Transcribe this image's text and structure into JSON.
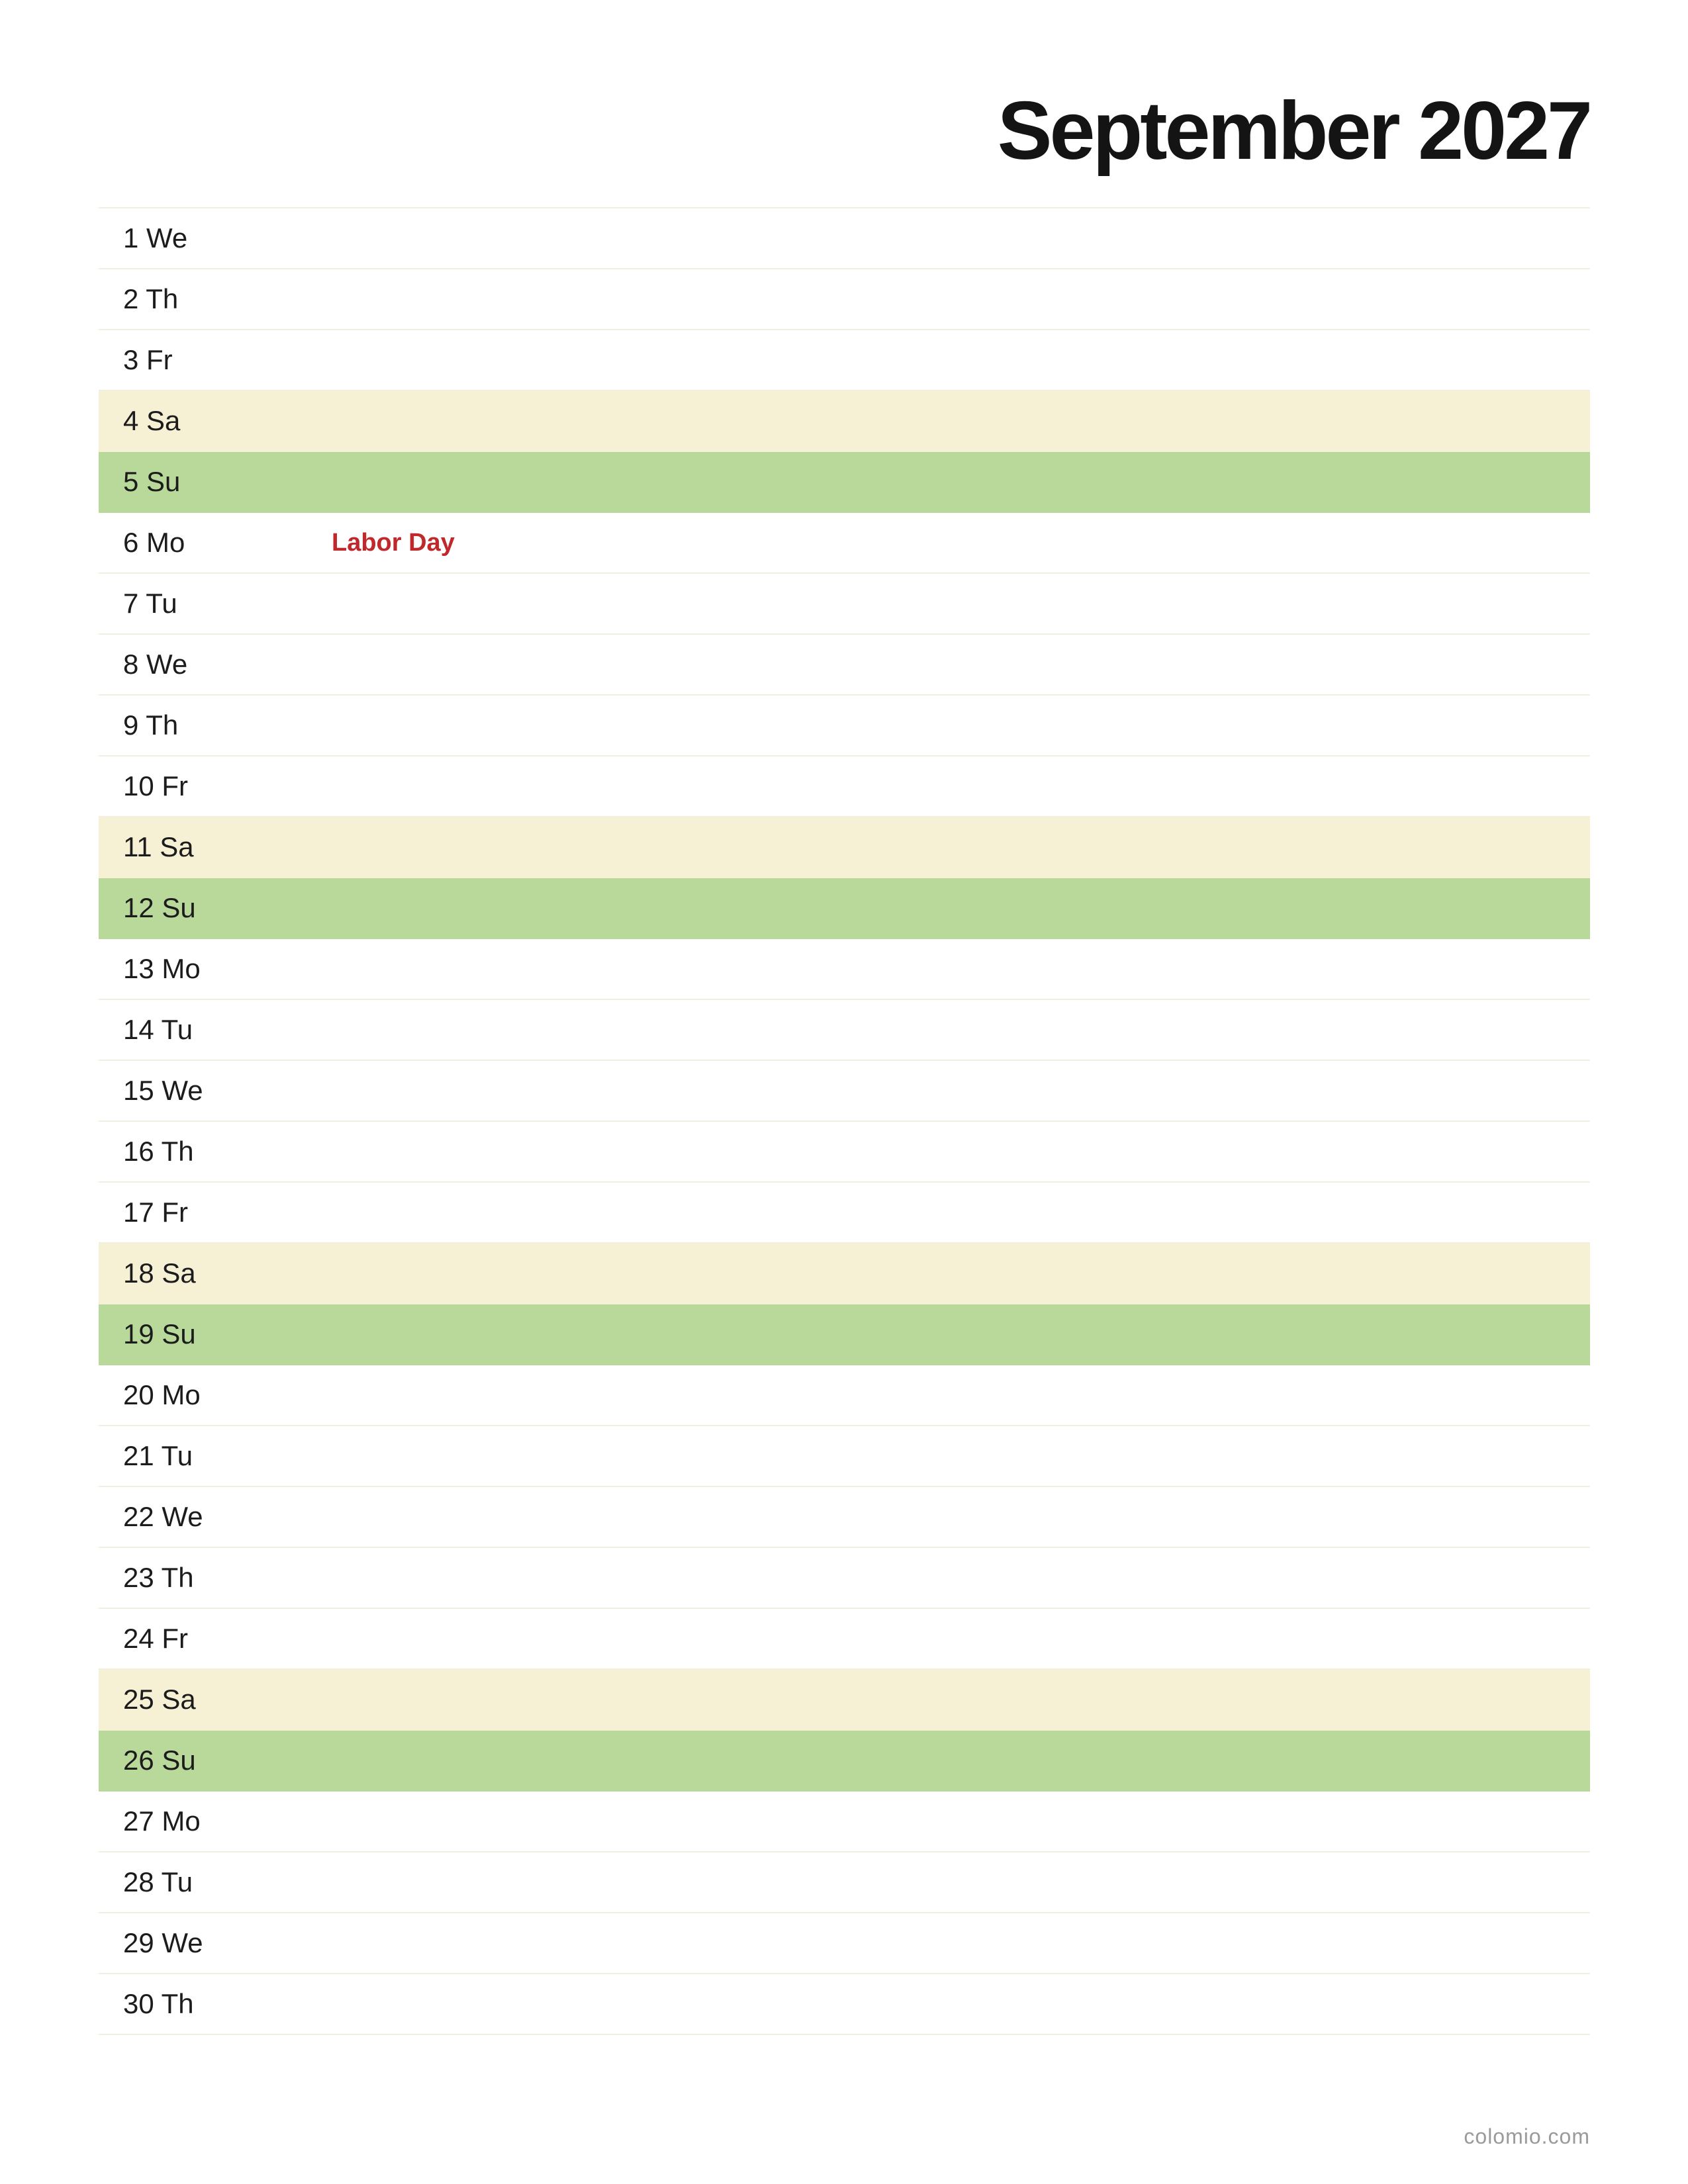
{
  "title": "September 2027",
  "colors": {
    "saturday_row": "#f6f0d5",
    "sunday_row": "#b8d99a",
    "holiday_text": "#c0282b",
    "divider": "#f2efe0"
  },
  "days": [
    {
      "label": "1 We",
      "type": "weekday"
    },
    {
      "label": "2 Th",
      "type": "weekday"
    },
    {
      "label": "3 Fr",
      "type": "weekday"
    },
    {
      "label": "4 Sa",
      "type": "sat"
    },
    {
      "label": "5 Su",
      "type": "sun"
    },
    {
      "label": "6 Mo",
      "type": "weekday",
      "holiday": "Labor Day"
    },
    {
      "label": "7 Tu",
      "type": "weekday"
    },
    {
      "label": "8 We",
      "type": "weekday"
    },
    {
      "label": "9 Th",
      "type": "weekday"
    },
    {
      "label": "10 Fr",
      "type": "weekday"
    },
    {
      "label": "11 Sa",
      "type": "sat"
    },
    {
      "label": "12 Su",
      "type": "sun"
    },
    {
      "label": "13 Mo",
      "type": "weekday"
    },
    {
      "label": "14 Tu",
      "type": "weekday"
    },
    {
      "label": "15 We",
      "type": "weekday"
    },
    {
      "label": "16 Th",
      "type": "weekday"
    },
    {
      "label": "17 Fr",
      "type": "weekday"
    },
    {
      "label": "18 Sa",
      "type": "sat"
    },
    {
      "label": "19 Su",
      "type": "sun"
    },
    {
      "label": "20 Mo",
      "type": "weekday"
    },
    {
      "label": "21 Tu",
      "type": "weekday"
    },
    {
      "label": "22 We",
      "type": "weekday"
    },
    {
      "label": "23 Th",
      "type": "weekday"
    },
    {
      "label": "24 Fr",
      "type": "weekday"
    },
    {
      "label": "25 Sa",
      "type": "sat"
    },
    {
      "label": "26 Su",
      "type": "sun"
    },
    {
      "label": "27 Mo",
      "type": "weekday"
    },
    {
      "label": "28 Tu",
      "type": "weekday"
    },
    {
      "label": "29 We",
      "type": "weekday"
    },
    {
      "label": "30 Th",
      "type": "weekday"
    }
  ],
  "footer": {
    "brand": "colomio.com"
  }
}
